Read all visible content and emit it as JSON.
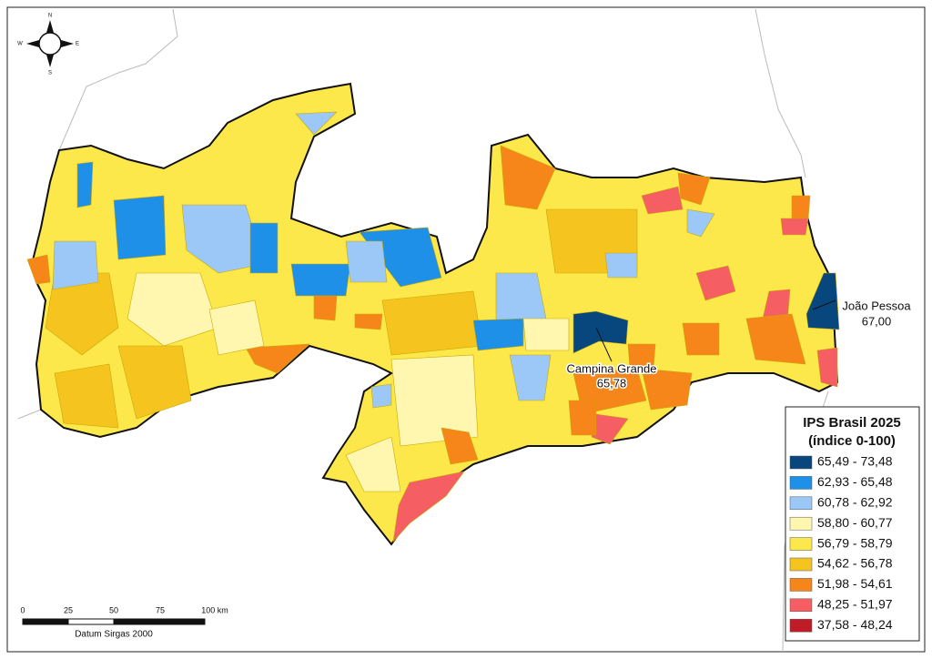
{
  "compass": {
    "north": "N",
    "south": "S",
    "east": "E",
    "west": "W"
  },
  "places": [
    {
      "name": "João Pessoa",
      "value": "67,00"
    },
    {
      "name": "Campina Grande",
      "value": "65,78"
    }
  ],
  "legend": {
    "title": [
      "IPS Brasil 2025",
      "(índice 0-100)"
    ],
    "classes": [
      {
        "label": "65,49 - 73,48",
        "color": "#08477e"
      },
      {
        "label": "62,93 - 65,48",
        "color": "#1e90e8"
      },
      {
        "label": "60,78 - 62,92",
        "color": "#9cc8f7"
      },
      {
        "label": "58,80 - 60,77",
        "color": "#fff7b0"
      },
      {
        "label": "56,79 - 58,79",
        "color": "#fde84b"
      },
      {
        "label": "54,62 - 56,78",
        "color": "#f5c41f"
      },
      {
        "label": "51,98 - 54,61",
        "color": "#f7861a"
      },
      {
        "label": "48,25 - 51,97",
        "color": "#f55e63"
      },
      {
        "label": "37,58 - 48,24",
        "color": "#c01c28"
      }
    ]
  },
  "scale": {
    "ticks": [
      "0",
      "25",
      "50",
      "75",
      "100 km"
    ],
    "datum": "Datum Sirgas 2000"
  }
}
